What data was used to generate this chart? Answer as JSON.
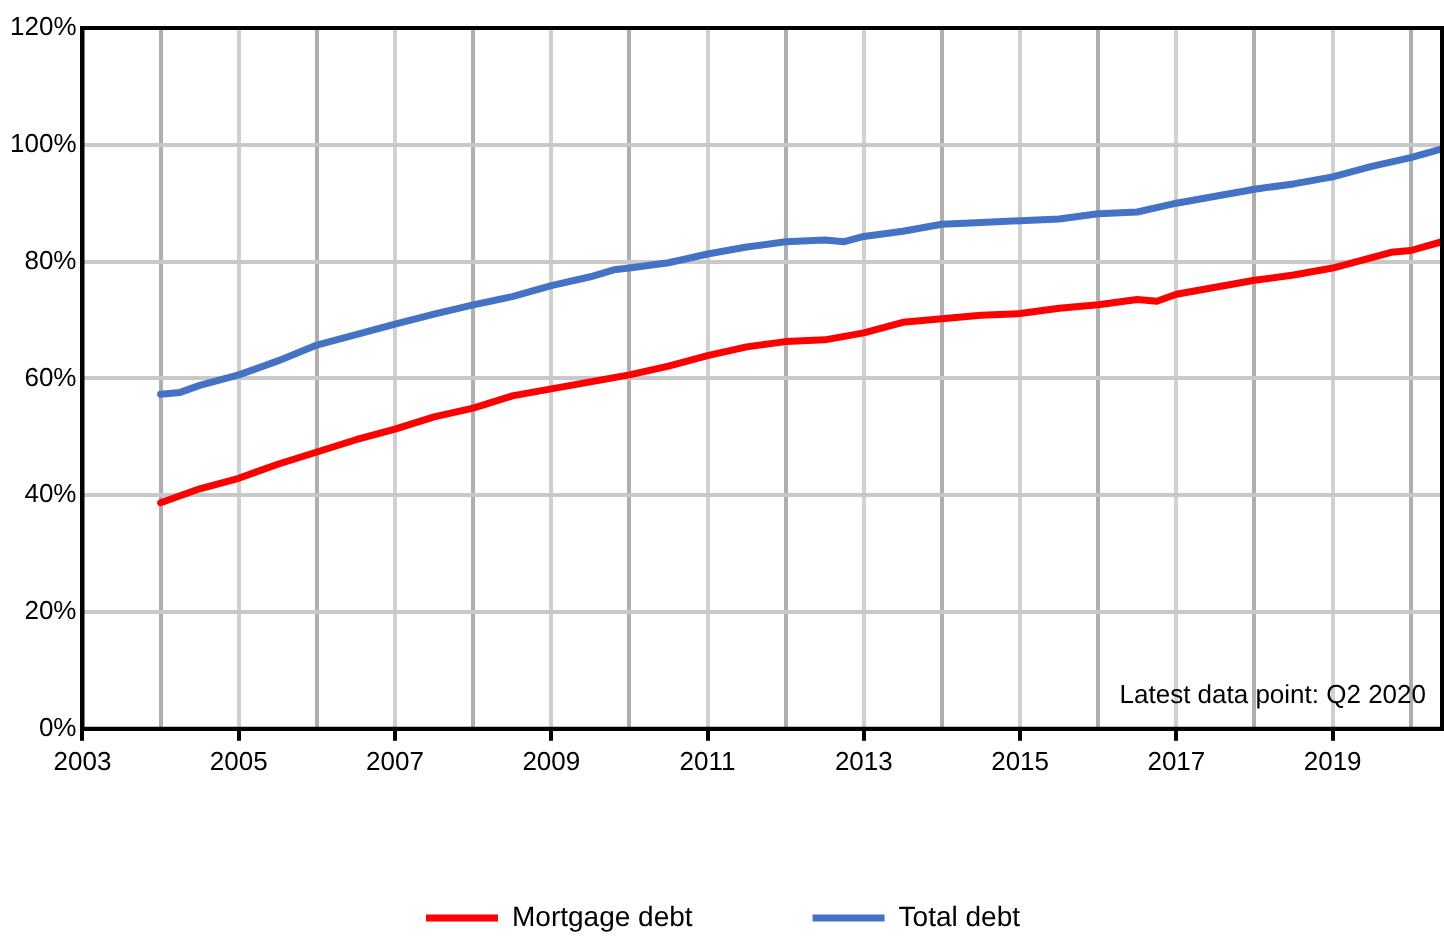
{
  "chart_data": {
    "type": "line",
    "xlim": [
      2003,
      2020.4
    ],
    "xticks": [
      2003,
      {
        "value": 2004,
        "label": null
      },
      2005,
      {
        "value": 2006,
        "label": null
      },
      2007,
      {
        "value": 2008,
        "label": null
      },
      2009,
      {
        "value": 2010,
        "label": null
      },
      2011,
      {
        "value": 2012,
        "label": null
      },
      2013,
      {
        "value": 2014,
        "label": null
      },
      2015,
      {
        "value": 2016,
        "label": null
      },
      2017,
      {
        "value": 2018,
        "label": null
      },
      2019,
      {
        "value": 2020,
        "label": null
      }
    ],
    "ylim": [
      0,
      120
    ],
    "yticks": [
      {
        "value": 0,
        "label": "0%"
      },
      {
        "value": 20,
        "label": "20%"
      },
      {
        "value": 40,
        "label": "40%"
      },
      {
        "value": 60,
        "label": "60%"
      },
      {
        "value": 80,
        "label": "80%"
      },
      {
        "value": 100,
        "label": "100%"
      },
      {
        "value": 120,
        "label": "120%"
      }
    ],
    "grid": true,
    "legend": "bottom",
    "marker": "none",
    "line_style": "solid",
    "annotations": [
      "Latest data point: Q2 2020"
    ],
    "series": [
      {
        "name": "Mortgage debt",
        "color": "#ff0000",
        "x": [
          2004,
          2004.5,
          2005,
          2005.5,
          2006,
          2006.5,
          2007,
          2007.5,
          2008,
          2008.5,
          2009,
          2009.5,
          2010,
          2010.5,
          2011,
          2011.5,
          2012,
          2012.5,
          2013,
          2013.5,
          2014,
          2014.5,
          2015,
          2015.5,
          2016,
          2016.5,
          2016.75,
          2017,
          2017.5,
          2018,
          2018.5,
          2019,
          2019.5,
          2019.75,
          2020,
          2020.4
        ],
        "values": [
          38.7,
          41.1,
          42.9,
          45.3,
          47.4,
          49.5,
          51.3,
          53.4,
          54.9,
          57,
          58.2,
          59.4,
          60.6,
          62.1,
          63.9,
          65.4,
          66.3,
          66.6,
          67.8,
          69.6,
          70.2,
          70.8,
          71.1,
          72,
          72.6,
          73.5,
          73.2,
          74.4,
          75.6,
          76.8,
          77.7,
          78.9,
          80.7,
          81.6,
          81.9,
          83.4
        ]
      },
      {
        "name": "Total debt",
        "color": "#4472c4",
        "x": [
          2004,
          2004.25,
          2004.5,
          2005,
          2005.5,
          2006,
          2006.5,
          2007,
          2007.5,
          2008,
          2008.5,
          2009,
          2009.5,
          2009.8,
          2010,
          2010.5,
          2011,
          2011.5,
          2012,
          2012.5,
          2012.75,
          2013,
          2013.5,
          2014,
          2014.5,
          2015,
          2015.5,
          2016,
          2016.5,
          2017,
          2017.5,
          2018,
          2018.5,
          2019,
          2019.5,
          2020,
          2020.4
        ],
        "values": [
          57.3,
          57.6,
          58.8,
          60.6,
          63,
          65.7,
          67.5,
          69.3,
          71,
          72.6,
          74,
          75.9,
          77.4,
          78.6,
          78.9,
          79.8,
          81.3,
          82.5,
          83.4,
          83.7,
          83.4,
          84.3,
          85.2,
          86.4,
          86.7,
          87,
          87.3,
          88.2,
          88.5,
          90,
          91.2,
          92.4,
          93.3,
          94.5,
          96.3,
          97.8,
          99.3
        ]
      }
    ]
  }
}
